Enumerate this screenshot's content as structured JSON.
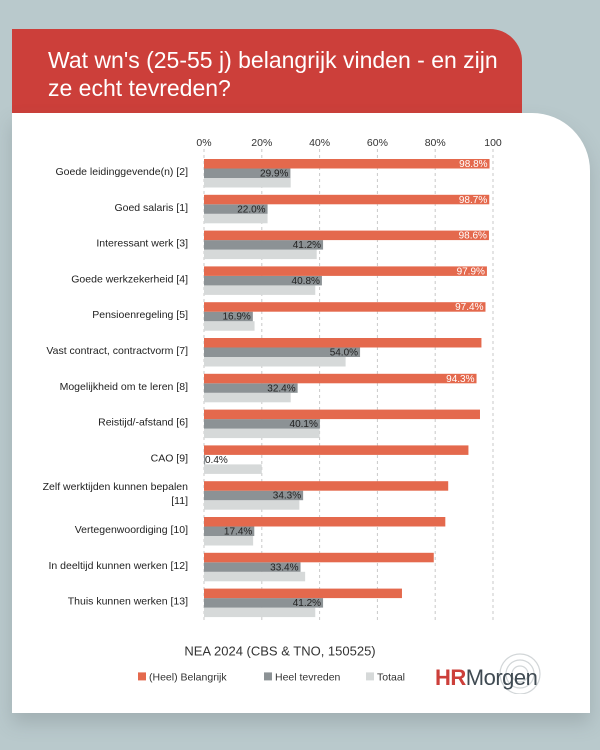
{
  "title": "Wat wn's (25-55 j) belangrijk vinden - en zijn ze echt tevreden?",
  "logo": {
    "part1": "HR",
    "part2": "Morgen"
  },
  "chart_data": {
    "type": "bar",
    "orientation": "horizontal",
    "subtitle": "NEA 2024 (CBS & TNO, 150525)",
    "xlim": [
      0,
      100
    ],
    "x_ticks": [
      "0%",
      "20%",
      "40%",
      "60%",
      "80%",
      "100"
    ],
    "grid": "vertical dashed",
    "legend_position": "bottom",
    "categories": [
      [
        "Goede leidinggevende(n) [2]"
      ],
      [
        "Goed salaris [1]"
      ],
      [
        "Interessant werk [3]"
      ],
      [
        "Goede werkzekerheid [4]"
      ],
      [
        "Pensioenregeling [5]"
      ],
      [
        "Vast contract, contractvorm [7]"
      ],
      [
        "Mogelijkheid om te leren [8]"
      ],
      [
        "Reistijd/-afstand [6]"
      ],
      [
        "CAO [9]"
      ],
      [
        "Zelf werktijden kunnen bepalen",
        "[11]"
      ],
      [
        "Vertegenwoordiging [10]"
      ],
      [
        "In deeltijd kunnen werken [12]"
      ],
      [
        "Thuis kunnen werken [13]"
      ]
    ],
    "series": [
      {
        "name": "(Heel) Belangrijk",
        "color": "#e4694d",
        "values": [
          98.8,
          98.7,
          98.6,
          97.9,
          97.4,
          96.0,
          94.3,
          95.5,
          91.5,
          84.5,
          83.5,
          79.5,
          68.5
        ],
        "labels": [
          "98.8%",
          "98.7%",
          "98.6%",
          "97.9%",
          "97.4%",
          "",
          "94.3%",
          "",
          "",
          "",
          "",
          "",
          ""
        ]
      },
      {
        "name": "Heel tevreden",
        "color": "#8c9295",
        "values": [
          29.9,
          22.0,
          41.2,
          40.8,
          16.9,
          54.0,
          32.4,
          40.1,
          0.4,
          34.3,
          17.4,
          33.4,
          41.2
        ],
        "labels": [
          "29.9%",
          "22.0%",
          "41.2%",
          "40.8%",
          "16.9%",
          "54.0%",
          "32.4%",
          "40.1%",
          "0.4%",
          "34.3%",
          "17.4%",
          "33.4%",
          "41.2%"
        ]
      },
      {
        "name": "Totaal",
        "color": "#d6d9d9",
        "values": [
          30.0,
          22.0,
          39.0,
          38.5,
          17.5,
          49.0,
          30.0,
          40.0,
          20.0,
          33.0,
          17.0,
          35.0,
          38.5
        ],
        "labels": [
          "",
          "",
          "",
          "",
          "",
          "",
          "",
          "",
          "",
          "",
          "",
          "",
          ""
        ]
      }
    ]
  }
}
